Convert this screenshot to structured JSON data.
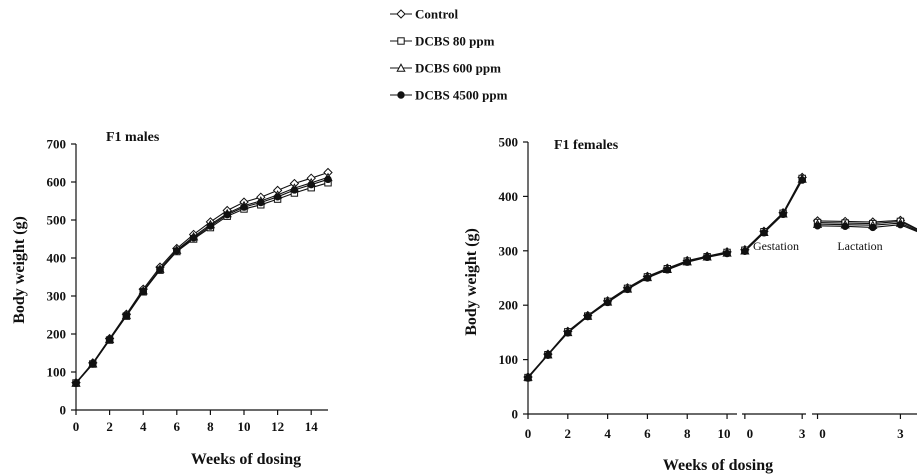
{
  "legend": [
    {
      "name": "Control",
      "marker": "diamond-open"
    },
    {
      "name": "DCBS 80 ppm",
      "marker": "square-open"
    },
    {
      "name": "DCBS 600 ppm",
      "marker": "triangle-open"
    },
    {
      "name": "DCBS 4500 ppm",
      "marker": "circle-filled"
    }
  ],
  "chart_data": [
    {
      "type": "line",
      "title": "F1 males",
      "xlabel": "Weeks of dosing",
      "ylabel": "Body weight (g)",
      "xlim": [
        0,
        15
      ],
      "ylim": [
        0,
        700
      ],
      "xticks": [
        0,
        2,
        4,
        6,
        8,
        10,
        12,
        14
      ],
      "yticks": [
        0,
        100,
        200,
        300,
        400,
        500,
        600,
        700
      ],
      "x": [
        0,
        1,
        2,
        3,
        4,
        5,
        6,
        7,
        8,
        9,
        10,
        11,
        12,
        13,
        14,
        15
      ],
      "series": [
        {
          "name": "Control",
          "values": [
            72,
            124,
            188,
            252,
            318,
            376,
            425,
            462,
            495,
            525,
            547,
            560,
            578,
            596,
            610,
            625
          ]
        },
        {
          "name": "DCBS 80 ppm",
          "values": [
            71,
            121,
            184,
            247,
            311,
            368,
            417,
            450,
            480,
            510,
            529,
            540,
            555,
            571,
            585,
            598
          ]
        },
        {
          "name": "DCBS 600 ppm",
          "values": [
            71,
            122,
            186,
            249,
            314,
            371,
            421,
            456,
            488,
            517,
            538,
            550,
            566,
            584,
            598,
            612
          ]
        },
        {
          "name": "DCBS 4500 ppm",
          "values": [
            70,
            121,
            185,
            248,
            312,
            369,
            419,
            453,
            484,
            514,
            534,
            546,
            561,
            579,
            593,
            607
          ]
        }
      ]
    },
    {
      "type": "line",
      "title": "F1 females",
      "xlabel": "Weeks of dosing",
      "ylabel": "Body weight (g)",
      "ylim": [
        0,
        500
      ],
      "yticks": [
        0,
        100,
        200,
        300,
        400,
        500
      ],
      "segments": [
        {
          "label": "",
          "xlim": [
            0,
            10.5
          ],
          "xticks": [
            0,
            2,
            4,
            6,
            8,
            10
          ],
          "x": [
            0,
            1,
            2,
            3,
            4,
            5,
            6,
            7,
            8,
            9,
            10
          ],
          "series": [
            {
              "name": "Control",
              "values": [
                68,
                110,
                152,
                181,
                208,
                232,
                253,
                268,
                282,
                290,
                298
              ]
            },
            {
              "name": "DCBS 80 ppm",
              "values": [
                67,
                109,
                151,
                180,
                207,
                231,
                252,
                267,
                281,
                289,
                297
              ]
            },
            {
              "name": "DCBS 600 ppm",
              "values": [
                68,
                109,
                150,
                180,
                206,
                230,
                251,
                266,
                280,
                289,
                296
              ]
            },
            {
              "name": "DCBS 4500 ppm",
              "values": [
                66,
                108,
                149,
                179,
                205,
                229,
                250,
                265,
                279,
                288,
                295
              ]
            }
          ]
        },
        {
          "label": "Gestation",
          "xlim": [
            -0.15,
            3.2
          ],
          "xticks": [
            0,
            3
          ],
          "x": [
            0,
            1,
            2,
            3
          ],
          "series": [
            {
              "name": "Control",
              "values": [
                302,
                336,
                370,
                435
              ]
            },
            {
              "name": "DCBS 80 ppm",
              "values": [
                301,
                335,
                369,
                433
              ]
            },
            {
              "name": "DCBS 600 ppm",
              "values": [
                300,
                334,
                368,
                432
              ]
            },
            {
              "name": "DCBS 4500 ppm",
              "values": [
                299,
                333,
                367,
                430
              ]
            }
          ]
        },
        {
          "label": "Lactation",
          "xlim": [
            -0.2,
            3.6
          ],
          "xticks": [
            0,
            3
          ],
          "x": [
            0,
            1,
            2,
            3,
            4
          ],
          "series": [
            {
              "name": "Control",
              "values": [
                355,
                354,
                353,
                356,
                330
              ]
            },
            {
              "name": "DCBS 80 ppm",
              "values": [
                352,
                351,
                350,
                354,
                329
              ]
            },
            {
              "name": "DCBS 600 ppm",
              "values": [
                349,
                348,
                347,
                351,
                328
              ]
            },
            {
              "name": "DCBS 4500 ppm",
              "values": [
                346,
                345,
                343,
                348,
                327
              ]
            }
          ]
        }
      ]
    }
  ]
}
